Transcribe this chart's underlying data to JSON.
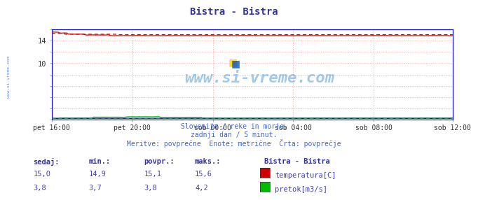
{
  "title": "Bistra - Bistra",
  "background_color": "#ffffff",
  "plot_bg_color": "#ffffff",
  "grid_color": "#ffaaaa",
  "x_tick_labels": [
    "pet 16:00",
    "pet 20:00",
    "sob 00:00",
    "sob 04:00",
    "sob 08:00",
    "sob 12:00"
  ],
  "x_tick_positions": [
    0,
    48,
    96,
    144,
    192,
    239
  ],
  "n_points": 240,
  "y_min": 0,
  "y_max": 16,
  "y_ticks_shown": [
    10,
    14
  ],
  "y_ticks_all": [
    0,
    2,
    4,
    6,
    8,
    10,
    12,
    14,
    16
  ],
  "temp_color": "#cc0000",
  "flow_color": "#00bb00",
  "height_color": "#0000cc",
  "watermark": "www.si-vreme.com",
  "subtitle1": "Slovenija / reke in morje.",
  "subtitle2": "zadnji dan / 5 minut.",
  "subtitle3": "Meritve: povprečne  Enote: metrične  Črta: povprečje",
  "legend_title": "Bistra - Bistra",
  "legend_items": [
    "temperatura[C]",
    "pretok[m3/s]"
  ],
  "legend_colors": [
    "#cc0000",
    "#00bb00"
  ],
  "table_headers": [
    "sedaj:",
    "min.:",
    "povpr.:",
    "maks.:"
  ],
  "table_row1": [
    "15,0",
    "14,9",
    "15,1",
    "15,6"
  ],
  "table_row2": [
    "3,8",
    "3,7",
    "3,8",
    "4,2"
  ],
  "sidebar_text": "www.si-vreme.com",
  "plot_border_color": "#0000cc",
  "text_color_header": "#333399",
  "text_color_data": "#4444aa",
  "text_color_subtitle": "#4466bb"
}
